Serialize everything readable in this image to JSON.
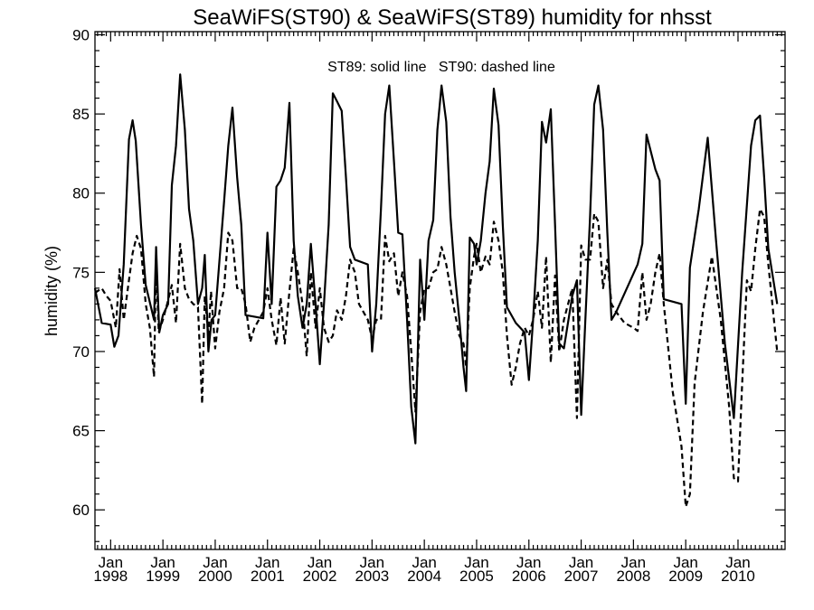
{
  "chart_data": {
    "type": "line",
    "title": "SeaWiFS(ST90) & SeaWiFS(ST89)  humidity for nhsst",
    "ylabel": "humidity (%)",
    "xlabel": "",
    "annotation": "ST89: solid line   ST90: dashed line",
    "ylim": [
      57.5,
      90.2
    ],
    "xlim": [
      1997.7,
      2010.9
    ],
    "grid": false,
    "yticks": [
      60,
      65,
      70,
      75,
      80,
      85,
      90
    ],
    "xticks": [
      {
        "x": 1998.0,
        "month": "Jan",
        "year": "1998"
      },
      {
        "x": 1999.0,
        "month": "Jan",
        "year": "1999"
      },
      {
        "x": 2000.0,
        "month": "Jan",
        "year": "2000"
      },
      {
        "x": 2001.0,
        "month": "Jan",
        "year": "2001"
      },
      {
        "x": 2002.0,
        "month": "Jan",
        "year": "2002"
      },
      {
        "x": 2003.0,
        "month": "Jan",
        "year": "2003"
      },
      {
        "x": 2004.0,
        "month": "Jan",
        "year": "2004"
      },
      {
        "x": 2005.0,
        "month": "Jan",
        "year": "2005"
      },
      {
        "x": 2006.0,
        "month": "Jan",
        "year": "2006"
      },
      {
        "x": 2007.0,
        "month": "Jan",
        "year": "2007"
      },
      {
        "x": 2008.0,
        "month": "Jan",
        "year": "2008"
      },
      {
        "x": 2009.0,
        "month": "Jan",
        "year": "2009"
      },
      {
        "x": 2010.0,
        "month": "Jan",
        "year": "2010"
      }
    ],
    "series": [
      {
        "name": "ST89",
        "style": "solid",
        "color": "#000000",
        "points": [
          [
            1997.7,
            74.0
          ],
          [
            1997.83,
            71.8
          ],
          [
            1998.0,
            71.7
          ],
          [
            1998.07,
            70.3
          ],
          [
            1998.15,
            71.0
          ],
          [
            1998.25,
            75.5
          ],
          [
            1998.35,
            83.4
          ],
          [
            1998.42,
            84.6
          ],
          [
            1998.48,
            83.3
          ],
          [
            1998.58,
            78.0
          ],
          [
            1998.67,
            74.2
          ],
          [
            1998.83,
            72.0
          ],
          [
            1998.87,
            76.6
          ],
          [
            1998.93,
            71.2
          ],
          [
            1999.0,
            72.3
          ],
          [
            1999.1,
            73.0
          ],
          [
            1999.17,
            80.5
          ],
          [
            1999.25,
            83.0
          ],
          [
            1999.33,
            87.5
          ],
          [
            1999.42,
            84.0
          ],
          [
            1999.5,
            79.0
          ],
          [
            1999.58,
            77.0
          ],
          [
            1999.67,
            73.0
          ],
          [
            1999.75,
            74.0
          ],
          [
            1999.8,
            76.1
          ],
          [
            1999.87,
            70.0
          ],
          [
            1999.93,
            72.0
          ],
          [
            2000.0,
            72.3
          ],
          [
            2000.17,
            79.5
          ],
          [
            2000.25,
            83.0
          ],
          [
            2000.33,
            85.4
          ],
          [
            2000.42,
            81.0
          ],
          [
            2000.5,
            78.0
          ],
          [
            2000.58,
            72.3
          ],
          [
            2000.75,
            72.2
          ],
          [
            2000.92,
            72.1
          ],
          [
            2001.0,
            77.5
          ],
          [
            2001.08,
            73.0
          ],
          [
            2001.17,
            80.4
          ],
          [
            2001.25,
            80.8
          ],
          [
            2001.33,
            81.6
          ],
          [
            2001.42,
            85.7
          ],
          [
            2001.5,
            77.0
          ],
          [
            2001.58,
            73.5
          ],
          [
            2001.67,
            71.5
          ],
          [
            2001.75,
            73.0
          ],
          [
            2001.83,
            76.8
          ],
          [
            2001.92,
            73.0
          ],
          [
            2002.0,
            69.2
          ],
          [
            2002.08,
            73.0
          ],
          [
            2002.17,
            78.0
          ],
          [
            2002.25,
            86.3
          ],
          [
            2002.33,
            85.8
          ],
          [
            2002.42,
            85.2
          ],
          [
            2002.5,
            81.0
          ],
          [
            2002.58,
            76.6
          ],
          [
            2002.67,
            75.8
          ],
          [
            2002.92,
            75.5
          ],
          [
            2003.0,
            70.0
          ],
          [
            2003.08,
            73.0
          ],
          [
            2003.17,
            79.0
          ],
          [
            2003.25,
            85.0
          ],
          [
            2003.33,
            86.8
          ],
          [
            2003.42,
            82.0
          ],
          [
            2003.5,
            77.5
          ],
          [
            2003.58,
            77.4
          ],
          [
            2003.67,
            72.0
          ],
          [
            2003.75,
            66.5
          ],
          [
            2003.83,
            64.2
          ],
          [
            2003.92,
            75.8
          ],
          [
            2004.0,
            72.0
          ],
          [
            2004.08,
            77.0
          ],
          [
            2004.17,
            78.3
          ],
          [
            2004.25,
            84.0
          ],
          [
            2004.33,
            86.8
          ],
          [
            2004.42,
            84.5
          ],
          [
            2004.5,
            78.5
          ],
          [
            2004.58,
            75.0
          ],
          [
            2004.67,
            72.0
          ],
          [
            2004.75,
            69.0
          ],
          [
            2004.8,
            67.5
          ],
          [
            2004.87,
            77.2
          ],
          [
            2004.95,
            76.8
          ],
          [
            2005.0,
            75.5
          ],
          [
            2005.08,
            77.0
          ],
          [
            2005.17,
            80.0
          ],
          [
            2005.25,
            82.0
          ],
          [
            2005.33,
            86.6
          ],
          [
            2005.42,
            84.3
          ],
          [
            2005.5,
            78.0
          ],
          [
            2005.58,
            72.8
          ],
          [
            2005.75,
            71.8
          ],
          [
            2005.92,
            71.2
          ],
          [
            2006.0,
            68.2
          ],
          [
            2006.08,
            72.0
          ],
          [
            2006.17,
            77.0
          ],
          [
            2006.25,
            84.5
          ],
          [
            2006.33,
            83.2
          ],
          [
            2006.42,
            85.3
          ],
          [
            2006.5,
            78.0
          ],
          [
            2006.58,
            70.5
          ],
          [
            2006.67,
            70.2
          ],
          [
            2006.83,
            73.5
          ],
          [
            2006.92,
            74.5
          ],
          [
            2007.0,
            66.0
          ],
          [
            2007.08,
            72.0
          ],
          [
            2007.17,
            78.5
          ],
          [
            2007.25,
            85.6
          ],
          [
            2007.33,
            86.8
          ],
          [
            2007.42,
            84.0
          ],
          [
            2007.5,
            77.5
          ],
          [
            2007.58,
            72.0
          ],
          [
            2007.67,
            72.5
          ],
          [
            2008.08,
            75.5
          ],
          [
            2008.17,
            76.8
          ],
          [
            2008.25,
            83.7
          ],
          [
            2008.42,
            81.5
          ],
          [
            2008.5,
            80.8
          ],
          [
            2008.58,
            73.3
          ],
          [
            2008.92,
            73.0
          ],
          [
            2009.0,
            66.7
          ],
          [
            2009.08,
            75.3
          ],
          [
            2009.25,
            79.0
          ],
          [
            2009.42,
            83.5
          ],
          [
            2009.58,
            77.0
          ],
          [
            2009.75,
            70.5
          ],
          [
            2009.92,
            65.8
          ],
          [
            2010.08,
            75.0
          ],
          [
            2010.25,
            83.0
          ],
          [
            2010.33,
            84.6
          ],
          [
            2010.42,
            84.9
          ],
          [
            2010.5,
            81.0
          ],
          [
            2010.58,
            76.5
          ],
          [
            2010.75,
            73.0
          ]
        ]
      },
      {
        "name": "ST90",
        "style": "dashed",
        "color": "#000000",
        "points": [
          [
            1997.7,
            73.7
          ],
          [
            1997.83,
            74.0
          ],
          [
            1997.92,
            73.5
          ],
          [
            1998.0,
            73.2
          ],
          [
            1998.1,
            71.5
          ],
          [
            1998.17,
            75.2
          ],
          [
            1998.25,
            72.0
          ],
          [
            1998.33,
            74.0
          ],
          [
            1998.42,
            76.2
          ],
          [
            1998.5,
            77.3
          ],
          [
            1998.58,
            76.5
          ],
          [
            1998.67,
            73.0
          ],
          [
            1998.75,
            71.5
          ],
          [
            1998.83,
            68.4
          ],
          [
            1998.87,
            75.8
          ],
          [
            1998.92,
            71.2
          ],
          [
            1999.0,
            72.0
          ],
          [
            1999.08,
            73.0
          ],
          [
            1999.17,
            74.2
          ],
          [
            1999.25,
            71.8
          ],
          [
            1999.33,
            76.8
          ],
          [
            1999.42,
            74.0
          ],
          [
            1999.5,
            73.3
          ],
          [
            1999.58,
            73.0
          ],
          [
            1999.67,
            72.8
          ],
          [
            1999.75,
            66.7
          ],
          [
            1999.8,
            73.5
          ],
          [
            1999.87,
            71.0
          ],
          [
            1999.92,
            73.8
          ],
          [
            2000.0,
            70.2
          ],
          [
            2000.08,
            72.5
          ],
          [
            2000.17,
            74.0
          ],
          [
            2000.25,
            77.5
          ],
          [
            2000.33,
            77.0
          ],
          [
            2000.42,
            74.0
          ],
          [
            2000.5,
            74.0
          ],
          [
            2000.58,
            73.0
          ],
          [
            2000.67,
            70.6
          ],
          [
            2000.75,
            71.5
          ],
          [
            2000.92,
            72.5
          ],
          [
            2001.0,
            74.0
          ],
          [
            2001.08,
            72.0
          ],
          [
            2001.17,
            70.4
          ],
          [
            2001.25,
            73.4
          ],
          [
            2001.33,
            70.5
          ],
          [
            2001.42,
            73.8
          ],
          [
            2001.5,
            76.5
          ],
          [
            2001.58,
            75.0
          ],
          [
            2001.67,
            73.0
          ],
          [
            2001.75,
            69.7
          ],
          [
            2001.83,
            75.0
          ],
          [
            2001.92,
            71.5
          ],
          [
            2002.0,
            74.0
          ],
          [
            2002.08,
            71.5
          ],
          [
            2002.17,
            70.6
          ],
          [
            2002.25,
            71.0
          ],
          [
            2002.33,
            72.6
          ],
          [
            2002.42,
            72.0
          ],
          [
            2002.5,
            73.5
          ],
          [
            2002.58,
            75.8
          ],
          [
            2002.67,
            75.0
          ],
          [
            2002.75,
            73.0
          ],
          [
            2002.92,
            72.0
          ],
          [
            2003.0,
            70.8
          ],
          [
            2003.08,
            72.0
          ],
          [
            2003.17,
            72.0
          ],
          [
            2003.25,
            77.3
          ],
          [
            2003.33,
            75.7
          ],
          [
            2003.42,
            76.2
          ],
          [
            2003.5,
            73.5
          ],
          [
            2003.58,
            75.0
          ],
          [
            2003.67,
            73.5
          ],
          [
            2003.75,
            70.0
          ],
          [
            2003.83,
            66.2
          ],
          [
            2003.92,
            72.5
          ],
          [
            2004.0,
            74.0
          ],
          [
            2004.08,
            74.0
          ],
          [
            2004.17,
            75.0
          ],
          [
            2004.25,
            75.2
          ],
          [
            2004.33,
            76.6
          ],
          [
            2004.42,
            75.5
          ],
          [
            2004.5,
            74.0
          ],
          [
            2004.58,
            72.5
          ],
          [
            2004.67,
            71.0
          ],
          [
            2004.75,
            70.5
          ],
          [
            2004.8,
            69.0
          ],
          [
            2004.87,
            74.0
          ],
          [
            2004.95,
            76.0
          ],
          [
            2005.0,
            76.8
          ],
          [
            2005.08,
            75.0
          ],
          [
            2005.17,
            76.0
          ],
          [
            2005.25,
            75.5
          ],
          [
            2005.33,
            78.2
          ],
          [
            2005.42,
            77.0
          ],
          [
            2005.5,
            75.0
          ],
          [
            2005.58,
            71.0
          ],
          [
            2005.67,
            67.9
          ],
          [
            2005.75,
            69.0
          ],
          [
            2005.83,
            70.5
          ],
          [
            2005.92,
            71.5
          ],
          [
            2006.0,
            71.0
          ],
          [
            2006.08,
            72.0
          ],
          [
            2006.17,
            73.8
          ],
          [
            2006.25,
            71.5
          ],
          [
            2006.33,
            76.0
          ],
          [
            2006.42,
            69.3
          ],
          [
            2006.5,
            74.8
          ],
          [
            2006.58,
            70.0
          ],
          [
            2006.67,
            72.0
          ],
          [
            2006.75,
            73.0
          ],
          [
            2006.83,
            74.0
          ],
          [
            2006.92,
            65.8
          ],
          [
            2007.0,
            76.7
          ],
          [
            2007.08,
            75.8
          ],
          [
            2007.17,
            75.8
          ],
          [
            2007.25,
            78.7
          ],
          [
            2007.33,
            78.2
          ],
          [
            2007.42,
            74.0
          ],
          [
            2007.5,
            75.8
          ],
          [
            2007.58,
            73.0
          ],
          [
            2007.67,
            72.5
          ],
          [
            2007.83,
            71.8
          ],
          [
            2008.0,
            71.5
          ],
          [
            2008.08,
            71.3
          ],
          [
            2008.17,
            75.0
          ],
          [
            2008.25,
            72.0
          ],
          [
            2008.33,
            73.0
          ],
          [
            2008.42,
            75.0
          ],
          [
            2008.5,
            76.2
          ],
          [
            2008.58,
            73.0
          ],
          [
            2008.75,
            67.5
          ],
          [
            2008.92,
            64.0
          ],
          [
            2009.0,
            60.2
          ],
          [
            2009.08,
            61.0
          ],
          [
            2009.17,
            68.0
          ],
          [
            2009.33,
            72.5
          ],
          [
            2009.5,
            76.0
          ],
          [
            2009.67,
            72.0
          ],
          [
            2009.83,
            66.5
          ],
          [
            2009.92,
            62.0
          ],
          [
            2010.0,
            61.8
          ],
          [
            2010.08,
            68.0
          ],
          [
            2010.17,
            74.5
          ],
          [
            2010.25,
            73.8
          ],
          [
            2010.33,
            76.5
          ],
          [
            2010.42,
            79.0
          ],
          [
            2010.5,
            78.5
          ],
          [
            2010.58,
            75.5
          ],
          [
            2010.75,
            70.0
          ]
        ]
      }
    ]
  }
}
